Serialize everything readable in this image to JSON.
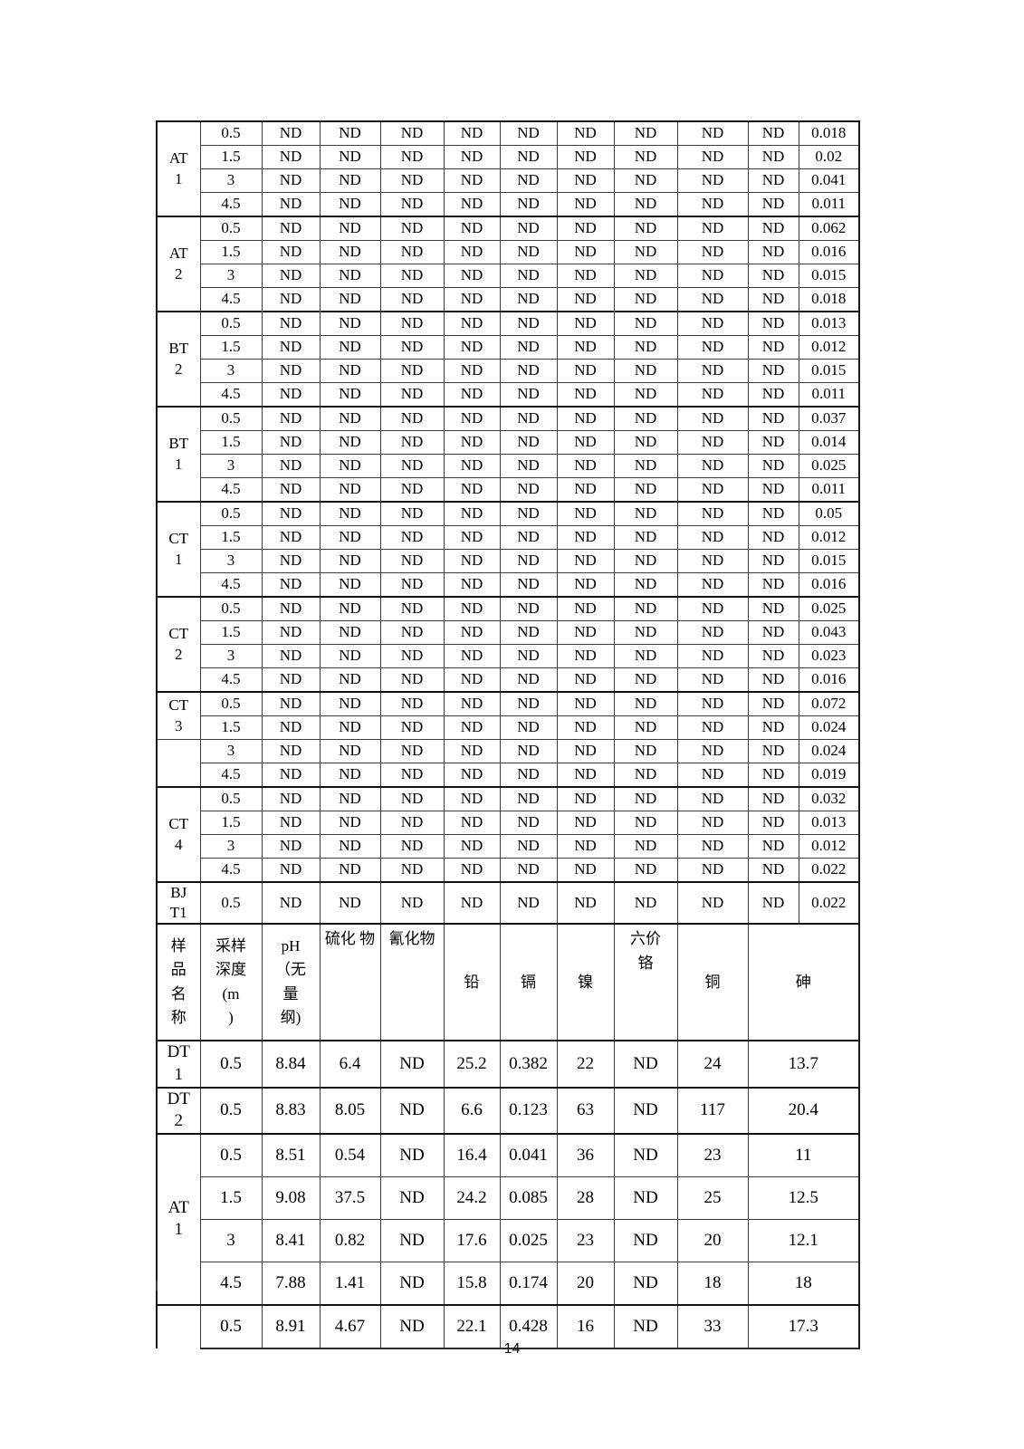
{
  "page": {
    "number": "14"
  },
  "table": {
    "nd_label": "ND",
    "upper_section": {
      "groups": [
        {
          "label_lines": [
            "AT",
            "1"
          ],
          "rows": [
            [
              "0.5",
              "0.018"
            ],
            [
              "1.5",
              "0.02"
            ],
            [
              "3",
              "0.041"
            ],
            [
              "4.5",
              "0.011"
            ]
          ]
        },
        {
          "label_lines": [
            "AT",
            "2"
          ],
          "rows": [
            [
              "0.5",
              "0.062"
            ],
            [
              "1.5",
              "0.016"
            ],
            [
              "3",
              "0.015"
            ],
            [
              "4.5",
              "0.018"
            ]
          ]
        },
        {
          "label_lines": [
            "BT",
            "2"
          ],
          "rows": [
            [
              "0.5",
              "0.013"
            ],
            [
              "1.5",
              "0.012"
            ],
            [
              "3",
              "0.015"
            ],
            [
              "4.5",
              "0.011"
            ]
          ]
        },
        {
          "label_lines": [
            "BT",
            "1"
          ],
          "rows": [
            [
              "0.5",
              "0.037"
            ],
            [
              "1.5",
              "0.014"
            ],
            [
              "3",
              "0.025"
            ],
            [
              "4.5",
              "0.011"
            ]
          ]
        },
        {
          "label_lines": [
            "CT",
            "1"
          ],
          "rows": [
            [
              "0.5",
              "0.05"
            ],
            [
              "1.5",
              "0.012"
            ],
            [
              "3",
              "0.015"
            ],
            [
              "4.5",
              "0.016"
            ]
          ]
        },
        {
          "label_lines": [
            "CT",
            "2"
          ],
          "rows": [
            [
              "0.5",
              "0.025"
            ],
            [
              "1.5",
              "0.043"
            ],
            [
              "3",
              "0.023"
            ],
            [
              "4.5",
              "0.016"
            ]
          ]
        },
        {
          "label_lines": [
            "CT",
            "3"
          ],
          "rows": [
            [
              "0.5",
              "0.072"
            ],
            [
              "1.5",
              "0.024"
            ]
          ]
        },
        {
          "label_lines": [],
          "thin_top": true,
          "rows": [
            [
              "3",
              "0.024"
            ],
            [
              "4.5",
              "0.019"
            ]
          ]
        },
        {
          "label_lines": [
            "CT",
            "4"
          ],
          "rows": [
            [
              "0.5",
              "0.032"
            ],
            [
              "1.5",
              "0.013"
            ],
            [
              "3",
              "0.012"
            ],
            [
              "4.5",
              "0.022"
            ]
          ]
        },
        {
          "label_lines": [
            "BJ",
            "T1"
          ],
          "tall": true,
          "rows": [
            [
              "0.5",
              "0.022"
            ]
          ]
        }
      ]
    },
    "header_row": {
      "cells": [
        {
          "name": "header-sample-name",
          "lines": [
            "样",
            "品",
            "名",
            "称"
          ]
        },
        {
          "name": "header-sampling-depth",
          "lines": [
            "采样",
            "深度",
            "(m",
            ")"
          ]
        },
        {
          "name": "header-ph",
          "lines": [
            "pH",
            "（无",
            "量",
            "纲)"
          ]
        },
        {
          "name": "header-sulfide",
          "lines": [
            "硫化 物"
          ],
          "top": true
        },
        {
          "name": "header-cyanide",
          "lines": [
            "氰化物"
          ],
          "top": true
        },
        {
          "name": "header-lead",
          "lines": [
            "铅"
          ]
        },
        {
          "name": "header-cadmium",
          "lines": [
            "镉"
          ]
        },
        {
          "name": "header-nickel",
          "lines": [
            "镍"
          ]
        },
        {
          "name": "header-hexavalent-chromium",
          "lines": [
            "六价",
            "铬"
          ],
          "top": true
        },
        {
          "name": "header-copper",
          "lines": [
            "铜"
          ]
        },
        {
          "name": "header-arsenic",
          "lines": [
            "砷"
          ],
          "colspan": 2
        }
      ]
    },
    "lower_section": {
      "cell_names": [
        "depth-cell",
        "ph-cell",
        "sulfide-cell",
        "cyanide-cell",
        "lead-cell",
        "cadmium-cell",
        "nickel-cell",
        "chromium-cell",
        "copper-cell",
        "arsenic-cell"
      ],
      "groups": [
        {
          "label_lines": [
            "DT",
            "1"
          ],
          "rows": [
            [
              "0.5",
              "8.84",
              "6.4",
              "ND",
              "25.2",
              "0.382",
              "22",
              "ND",
              "24",
              "13.7"
            ]
          ]
        },
        {
          "label_lines": [
            "DT",
            "2"
          ],
          "rows": [
            [
              "0.5",
              "8.83",
              "8.05",
              "ND",
              "6.6",
              "0.123",
              "63",
              "ND",
              "117",
              "20.4"
            ]
          ]
        },
        {
          "label_lines": [
            "AT",
            "1"
          ],
          "rows": [
            [
              "0.5",
              "8.51",
              "0.54",
              "ND",
              "16.4",
              "0.041",
              "36",
              "ND",
              "23",
              "11"
            ],
            [
              "1.5",
              "9.08",
              "37.5",
              "ND",
              "24.2",
              "0.085",
              "28",
              "ND",
              "25",
              "12.5"
            ],
            [
              "3",
              "8.41",
              "0.82",
              "ND",
              "17.6",
              "0.025",
              "23",
              "ND",
              "20",
              "12.1"
            ],
            [
              "4.5",
              "7.88",
              "1.41",
              "ND",
              "15.8",
              "0.174",
              "20",
              "ND",
              "18",
              "18"
            ]
          ]
        },
        {
          "label_lines": [],
          "cut_bottom": true,
          "rows": [
            [
              "0.5",
              "8.91",
              "4.67",
              "ND",
              "22.1",
              "0.428",
              "16",
              "ND",
              "33",
              "17.3"
            ]
          ]
        }
      ]
    }
  }
}
